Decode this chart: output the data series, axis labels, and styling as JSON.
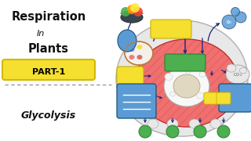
{
  "bg_color": "#ffffff",
  "title_line1": "Respiration",
  "title_line2": "In",
  "title_line3": "Plants",
  "badge_text": "PART-1",
  "badge_bg": "#f5e030",
  "badge_border": "#d4b800",
  "badge_text_color": "#000000",
  "subtitle": "Glycolysis",
  "dashed_line_color": "#888888",
  "text_color": "#111111",
  "arrow_color": "#1a237e",
  "cell_outer_color": "#e8e8e8",
  "cell_outer_edge": "#b0b0b0",
  "cell_inner_color": "#f07070",
  "cell_inner_edge": "#c03030",
  "cell_inner_hatch": "#e05060",
  "nucleus_outer": "#f0f0f0",
  "nucleus_edge": "#999999",
  "nucleus_inner": "#e0d8c0",
  "mito_outer": "#f0d0b0",
  "mito_edge": "#c07840",
  "mito_inner": "#d08060",
  "yellow_rect": "#f5e030",
  "yellow_edge": "#c8b000",
  "green_rect": "#4caf50",
  "green_edge": "#2e7d32",
  "blue_rect": "#5b9bd5",
  "blue_edge": "#1a5276",
  "blue_dot": "#3a7abf",
  "co2_bg": "#e8e8e8",
  "co2_edge": "#aaaaaa",
  "o2_color": "#5b9bd5",
  "o2_edge": "#1a5276",
  "green_circle": "#4caf50",
  "green_circle_edge": "#2e7d32",
  "bowl_color": "#37474f",
  "fruit_colors": [
    "#4caf50",
    "#ff9800",
    "#f44336",
    "#ffeb3b"
  ],
  "glove_color": "#5b9bd5",
  "glove_edge": "#1a5276",
  "small_circles_color": "#e8e8e8",
  "small_circles_edge": "#aaaaaa"
}
